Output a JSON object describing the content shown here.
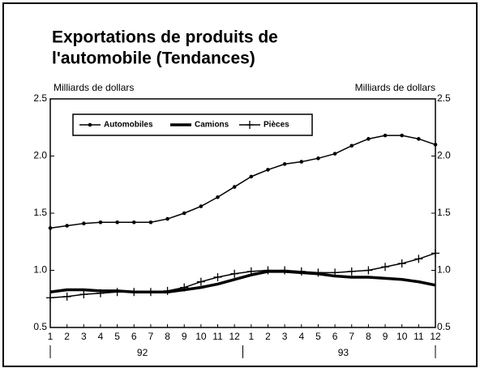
{
  "chart_data": {
    "type": "line",
    "title": [
      "Exportations de produits de",
      "l'automobile (Tendances)"
    ],
    "ylabel": "Milliards de dollars",
    "y2label": "Milliards de dollars",
    "categories": [
      "1",
      "2",
      "3",
      "4",
      "5",
      "6",
      "7",
      "8",
      "9",
      "10",
      "11",
      "12",
      "1",
      "2",
      "3",
      "4",
      "5",
      "6",
      "7",
      "8",
      "9",
      "10",
      "11",
      "12"
    ],
    "year_labels": [
      "92",
      "93"
    ],
    "ylim": [
      0.5,
      2.5
    ],
    "yticks": [
      0.5,
      {
        "value": 1.0,
        "label": "1.0"
      },
      1.5,
      {
        "value": 2.0,
        "label": "2.0"
      },
      2.5
    ],
    "series": [
      {
        "name": "Automobiles",
        "color": "#000000",
        "marker": "dot",
        "values": [
          1.37,
          1.39,
          1.41,
          1.42,
          1.42,
          1.42,
          1.42,
          1.45,
          1.5,
          1.56,
          1.64,
          1.73,
          1.82,
          1.88,
          1.93,
          1.95,
          1.98,
          2.02,
          2.09,
          2.15,
          2.18,
          2.18,
          2.15,
          2.1
        ]
      },
      {
        "name": "Camions",
        "color": "#000000",
        "marker": "none",
        "values": [
          0.81,
          0.83,
          0.83,
          0.82,
          0.82,
          0.81,
          0.81,
          0.81,
          0.83,
          0.85,
          0.88,
          0.92,
          0.96,
          0.99,
          0.99,
          0.98,
          0.97,
          0.95,
          0.94,
          0.94,
          0.93,
          0.92,
          0.9,
          0.87
        ]
      },
      {
        "name": "Pièces",
        "color": "#000000",
        "marker": "plus",
        "values": [
          0.76,
          0.77,
          0.79,
          0.8,
          0.81,
          0.81,
          0.81,
          0.82,
          0.85,
          0.9,
          0.94,
          0.97,
          0.99,
          1.0,
          1.0,
          0.99,
          0.98,
          0.98,
          0.99,
          1.0,
          1.03,
          1.06,
          1.1,
          1.15
        ]
      }
    ]
  }
}
